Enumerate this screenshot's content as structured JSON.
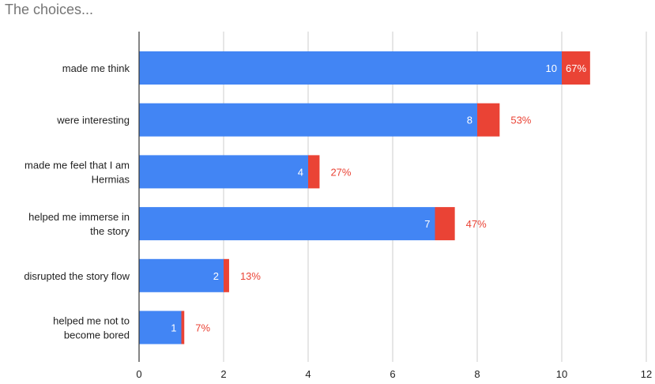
{
  "chart_data": {
    "type": "bar",
    "orientation": "horizontal",
    "stacked": true,
    "title": "The choices...",
    "categories": [
      "made me think",
      "were interesting",
      "made me feel that I am Hermias",
      "helped me immerse in the story",
      "disrupted the story flow",
      "helped me not to become bored"
    ],
    "category_lines": [
      [
        "made me think"
      ],
      [
        "were interesting"
      ],
      [
        "made me feel that I am",
        "Hermias"
      ],
      [
        "helped me immerse in",
        "the story"
      ],
      [
        "disrupted the story flow"
      ],
      [
        "helped me not to",
        "become bored"
      ]
    ],
    "series": [
      {
        "values": [
          10,
          8,
          4,
          7,
          2,
          1
        ],
        "color": "#4285F4"
      },
      {
        "values": [
          0.67,
          0.53,
          0.27,
          0.47,
          0.13,
          0.07
        ],
        "color": "#EA4335"
      }
    ],
    "value_labels": [
      "10",
      "8",
      "4",
      "7",
      "2",
      "1"
    ],
    "percent_labels": [
      "67%",
      "53%",
      "27%",
      "47%",
      "13%",
      "7%"
    ],
    "percent_label_color": "#EA4335",
    "x_ticks": [
      "0",
      "2",
      "4",
      "6",
      "8",
      "10",
      "12"
    ],
    "xlim": [
      0,
      12
    ],
    "grid": true,
    "gridline_color": "#CCCCCC",
    "axis_color": "#333333"
  }
}
